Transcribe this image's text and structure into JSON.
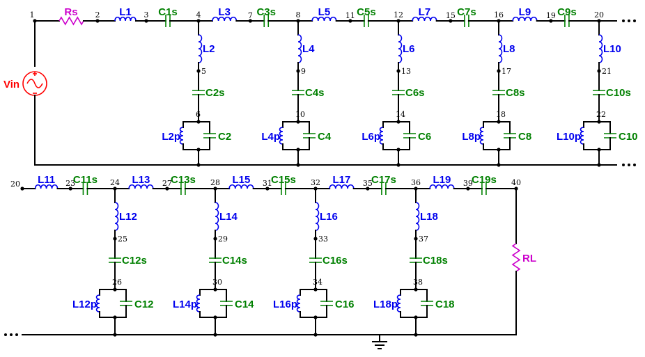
{
  "colors": {
    "wire": "#000000",
    "inductor": "#0000ee",
    "capacitor": "#008000",
    "resistor": "#cc00cc",
    "source": "#ff0000"
  },
  "source": {
    "label": "Vin",
    "node": "1"
  },
  "rs": {
    "label": "Rs"
  },
  "rl": {
    "label": "RL"
  },
  "top_series": [
    {
      "l": "L1",
      "c": "C1s",
      "n_left": "2",
      "n_mid": "3",
      "n_right": "4"
    },
    {
      "l": "L3",
      "c": "C3s",
      "n_mid": "7",
      "n_right": "8"
    },
    {
      "l": "L5",
      "c": "C5s",
      "n_mid": "11",
      "n_right": "12"
    },
    {
      "l": "L7",
      "c": "C7s",
      "n_mid": "15",
      "n_right": "16"
    },
    {
      "l": "L9",
      "c": "C9s",
      "n_mid": "19",
      "n_right": "20"
    }
  ],
  "top_shunt": [
    {
      "l": "L2",
      "n1": "5",
      "cs": "C2s",
      "n2": "6",
      "lp": "L2p",
      "cp": "C2"
    },
    {
      "l": "L4",
      "n1": "9",
      "cs": "C4s",
      "n2": "10",
      "lp": "L4p",
      "cp": "C4"
    },
    {
      "l": "L6",
      "n1": "13",
      "cs": "C6s",
      "n2": "14",
      "lp": "L6p",
      "cp": "C6"
    },
    {
      "l": "L8",
      "n1": "17",
      "cs": "C8s",
      "n2": "18",
      "lp": "L8p",
      "cp": "C8"
    },
    {
      "l": "L10",
      "n1": "21",
      "cs": "C10s",
      "n2": "22",
      "lp": "L10p",
      "cp": "C10"
    }
  ],
  "bottom_start_node": "20",
  "bottom_series": [
    {
      "l": "L11",
      "c": "C11s",
      "n_mid": "23",
      "n_right": "24"
    },
    {
      "l": "L13",
      "c": "C13s",
      "n_mid": "27",
      "n_right": "28"
    },
    {
      "l": "L15",
      "c": "C15s",
      "n_mid": "31",
      "n_right": "32"
    },
    {
      "l": "L17",
      "c": "C17s",
      "n_mid": "35",
      "n_right": "36"
    },
    {
      "l": "L19",
      "c": "C19s",
      "n_mid": "39",
      "n_right": "40"
    }
  ],
  "bottom_shunt": [
    {
      "l": "L12",
      "n1": "25",
      "cs": "C12s",
      "n2": "26",
      "lp": "L12p",
      "cp": "C12"
    },
    {
      "l": "L14",
      "n1": "29",
      "cs": "C14s",
      "n2": "30",
      "lp": "L14p",
      "cp": "C14"
    },
    {
      "l": "L16",
      "n1": "33",
      "cs": "C16s",
      "n2": "34",
      "lp": "L16p",
      "cp": "C16"
    },
    {
      "l": "L18",
      "n1": "37",
      "cs": "C18s",
      "n2": "38",
      "lp": "L18p",
      "cp": "C18"
    }
  ]
}
